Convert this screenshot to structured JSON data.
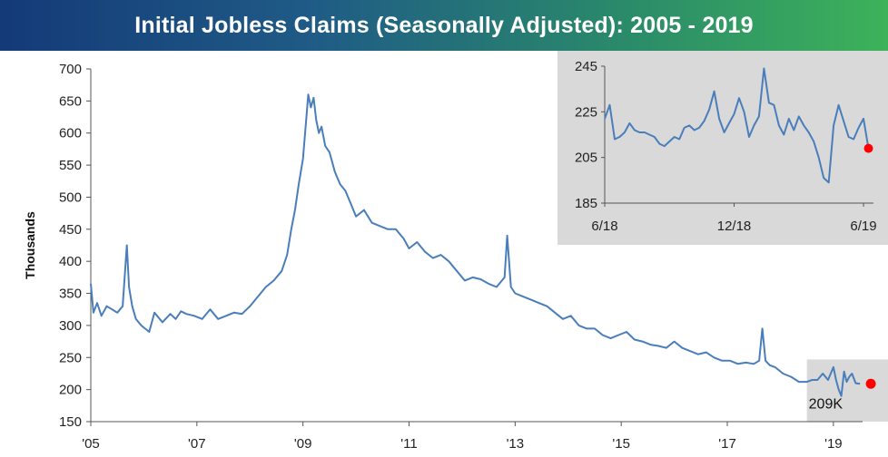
{
  "title": "Initial Jobless Claims (Seasonally Adjusted): 2005 - 2019",
  "colors": {
    "line": "#4a7ebb",
    "end_marker": "#ff0000",
    "highlight_box": "#d9d9d9",
    "title_left": "#143a78",
    "title_right": "#3db25a"
  },
  "chart_data": [
    {
      "type": "line",
      "ylabel": "Thousands",
      "xlabel": "",
      "ylim": [
        150,
        700
      ],
      "yticks": [
        150,
        200,
        250,
        300,
        350,
        400,
        450,
        500,
        550,
        600,
        650,
        700
      ],
      "x_tick_labels": [
        "'05",
        "'07",
        "'09",
        "'11",
        "'13",
        "'15",
        "'17",
        "'19"
      ],
      "x_tick_years": [
        2005,
        2007,
        2009,
        2011,
        2013,
        2015,
        2017,
        2019
      ],
      "xlim": [
        2005.0,
        2019.55
      ],
      "grid": false,
      "end_label": "209K",
      "end_value": 209,
      "highlight_range": [
        2018.5,
        2019.55
      ],
      "series": [
        {
          "x": [
            2005.0,
            2005.05,
            2005.12,
            2005.2,
            2005.3,
            2005.4,
            2005.5,
            2005.6,
            2005.68,
            2005.72,
            2005.78,
            2005.85,
            2005.95,
            2006.1,
            2006.2,
            2006.35,
            2006.5,
            2006.6,
            2006.7,
            2006.8,
            2006.95,
            2007.1,
            2007.25,
            2007.4,
            2007.55,
            2007.7,
            2007.85,
            2008.0,
            2008.15,
            2008.3,
            2008.45,
            2008.6,
            2008.7,
            2008.78,
            2008.85,
            2008.92,
            2009.0,
            2009.05,
            2009.1,
            2009.15,
            2009.2,
            2009.25,
            2009.3,
            2009.35,
            2009.42,
            2009.5,
            2009.6,
            2009.7,
            2009.8,
            2009.9,
            2010.0,
            2010.15,
            2010.3,
            2010.45,
            2010.6,
            2010.75,
            2010.9,
            2011.0,
            2011.15,
            2011.3,
            2011.45,
            2011.6,
            2011.75,
            2011.9,
            2012.05,
            2012.2,
            2012.35,
            2012.5,
            2012.65,
            2012.8,
            2012.85,
            2012.92,
            2013.0,
            2013.15,
            2013.3,
            2013.45,
            2013.6,
            2013.75,
            2013.9,
            2014.05,
            2014.2,
            2014.35,
            2014.5,
            2014.65,
            2014.8,
            2014.95,
            2015.1,
            2015.25,
            2015.4,
            2015.55,
            2015.7,
            2015.85,
            2016.0,
            2016.15,
            2016.3,
            2016.45,
            2016.6,
            2016.75,
            2016.9,
            2017.05,
            2017.2,
            2017.35,
            2017.5,
            2017.6,
            2017.66,
            2017.72,
            2017.8,
            2017.9,
            2018.05,
            2018.2,
            2018.35,
            2018.5,
            2018.6,
            2018.7,
            2018.8,
            2018.9,
            2018.95,
            2019.0,
            2019.05,
            2019.1,
            2019.15,
            2019.2,
            2019.25,
            2019.3,
            2019.35,
            2019.42,
            2019.5
          ],
          "values": [
            365,
            320,
            335,
            315,
            330,
            325,
            320,
            330,
            425,
            360,
            330,
            310,
            300,
            290,
            320,
            305,
            318,
            310,
            322,
            318,
            315,
            310,
            325,
            310,
            315,
            320,
            318,
            330,
            345,
            360,
            370,
            385,
            410,
            450,
            480,
            520,
            560,
            610,
            660,
            640,
            655,
            620,
            600,
            610,
            580,
            570,
            540,
            520,
            510,
            490,
            470,
            480,
            460,
            455,
            450,
            450,
            435,
            420,
            430,
            415,
            405,
            410,
            400,
            385,
            370,
            375,
            372,
            365,
            360,
            375,
            440,
            360,
            350,
            345,
            340,
            335,
            330,
            320,
            310,
            315,
            300,
            295,
            295,
            285,
            280,
            285,
            290,
            278,
            275,
            270,
            268,
            265,
            275,
            265,
            260,
            255,
            258,
            250,
            245,
            245,
            240,
            242,
            240,
            245,
            295,
            245,
            238,
            235,
            225,
            220,
            212,
            212,
            215,
            215,
            225,
            215,
            225,
            235,
            215,
            200,
            190,
            228,
            212,
            220,
            225,
            210,
            209
          ]
        }
      ]
    },
    {
      "type": "line",
      "ylim": [
        185,
        245
      ],
      "yticks": [
        185,
        205,
        225,
        245
      ],
      "x_tick_labels": [
        "6/18",
        "12/18",
        "6/19"
      ],
      "x_tick_positions": [
        0,
        26,
        52
      ],
      "xlim": [
        0,
        54
      ],
      "grid": false,
      "series": [
        {
          "x": [
            0,
            1,
            2,
            3,
            4,
            5,
            6,
            7,
            8,
            9,
            10,
            11,
            12,
            13,
            14,
            15,
            16,
            17,
            18,
            19,
            20,
            21,
            22,
            23,
            24,
            25,
            26,
            27,
            28,
            29,
            30,
            31,
            32,
            33,
            34,
            35,
            36,
            37,
            38,
            39,
            40,
            41,
            42,
            43,
            44,
            45,
            46,
            47,
            48,
            49,
            50,
            51,
            52,
            53
          ],
          "values": [
            222,
            228,
            213,
            214,
            216,
            220,
            217,
            216,
            216,
            215,
            214,
            211,
            210,
            212,
            214,
            213,
            218,
            219,
            217,
            218,
            221,
            226,
            234,
            222,
            216,
            220,
            224,
            231,
            225,
            214,
            219,
            223,
            244,
            229,
            228,
            219,
            215,
            222,
            217,
            223,
            219,
            216,
            212,
            205,
            196,
            194,
            219,
            228,
            221,
            214,
            213,
            218,
            222,
            209
          ]
        }
      ]
    }
  ]
}
